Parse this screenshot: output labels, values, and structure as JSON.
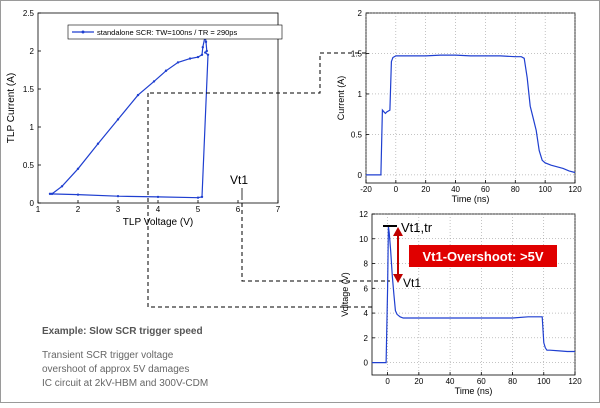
{
  "chart_data": [
    {
      "type": "line",
      "xlabel": "TLP Voltage (V)",
      "ylabel": "TLP Current (A)",
      "xlim": [
        1,
        7
      ],
      "ylim": [
        0,
        2.5
      ],
      "xticks": [
        "1",
        "2",
        "3",
        "4",
        "5",
        "6",
        "7"
      ],
      "yticks": [
        "0",
        "0.5",
        "1",
        "1.5",
        "2",
        "2.5"
      ],
      "grid": false,
      "legend": "top-left",
      "series": [
        {
          "name": "standalone SCR: TW=100ns / TR = 290ps",
          "x": [
            1.35,
            1.6,
            2.0,
            2.5,
            3.0,
            3.5,
            3.9,
            4.2,
            4.5,
            4.8,
            5.0,
            5.1,
            5.12,
            5.18,
            5.2,
            5.22,
            5.18,
            5.25,
            5.1,
            5.0,
            4.0,
            3.0,
            2.0,
            1.3
          ],
          "y": [
            0.12,
            0.22,
            0.45,
            0.78,
            1.1,
            1.42,
            1.6,
            1.74,
            1.85,
            1.9,
            1.92,
            1.95,
            2.05,
            2.2,
            2.12,
            2.0,
            1.98,
            1.95,
            0.08,
            0.07,
            0.08,
            0.09,
            0.11,
            0.12
          ]
        }
      ],
      "annotations": [
        "Vt1"
      ],
      "color": "#1f3fd0"
    },
    {
      "type": "line",
      "xlabel": "Time (ns)",
      "ylabel": "Current (A)",
      "xlim": [
        -20,
        120
      ],
      "ylim": [
        -0.1,
        2.0
      ],
      "xticks": [
        "-20",
        "0",
        "20",
        "40",
        "60",
        "80",
        "100",
        "120"
      ],
      "yticks": [
        "0",
        "0.5",
        "1",
        "1.5",
        "2"
      ],
      "grid": true,
      "series": [
        {
          "x": [
            -20,
            -10,
            -9,
            -8,
            -7,
            -6,
            -4,
            -3,
            -2,
            0,
            10,
            20,
            30,
            40,
            50,
            60,
            70,
            80,
            84,
            86,
            88,
            90,
            92,
            94,
            96,
            98,
            100,
            104,
            108,
            112,
            116,
            120
          ],
          "y": [
            0.0,
            0.0,
            0.8,
            0.78,
            0.76,
            0.78,
            0.8,
            1.4,
            1.45,
            1.47,
            1.47,
            1.47,
            1.48,
            1.48,
            1.47,
            1.47,
            1.47,
            1.46,
            1.46,
            1.44,
            1.2,
            0.85,
            0.7,
            0.55,
            0.3,
            0.18,
            0.15,
            0.12,
            0.1,
            0.08,
            0.05,
            0.03
          ]
        }
      ],
      "color": "#1f3fd0"
    },
    {
      "type": "line",
      "xlabel": "Time (ns)",
      "ylabel": "Voltage (V)",
      "xlim": [
        -10,
        120
      ],
      "ylim": [
        -1,
        12
      ],
      "xticks": [
        "0",
        "20",
        "40",
        "60",
        "80",
        "100",
        "120"
      ],
      "yticks": [
        "0",
        "2",
        "4",
        "6",
        "8",
        "10",
        "12"
      ],
      "grid": true,
      "series": [
        {
          "x": [
            -10,
            -1,
            0,
            0.5,
            1,
            2,
            3,
            4,
            5,
            6,
            8,
            10,
            15,
            20,
            30,
            40,
            50,
            60,
            70,
            80,
            90,
            99,
            100,
            101,
            102,
            104,
            110,
            115,
            120
          ],
          "y": [
            0.0,
            0.0,
            6.0,
            11.0,
            10.5,
            9.0,
            7.0,
            5.5,
            4.2,
            3.9,
            3.7,
            3.6,
            3.6,
            3.6,
            3.6,
            3.6,
            3.6,
            3.6,
            3.6,
            3.6,
            3.7,
            3.7,
            1.6,
            1.2,
            1.0,
            1.0,
            0.95,
            0.9,
            0.9
          ]
        }
      ],
      "annotations": [
        "Vt1,tr",
        "Vt1-Overshoot: >5V",
        "Vt1"
      ],
      "color": "#1f3fd0"
    }
  ],
  "text": {
    "example": "Example: Slow SCR trigger speed",
    "desc1": "Transient SCR trigger voltage",
    "desc2": "overshoot of approx 5V damages",
    "desc3": "IC circuit at  2kV-HBM and 300V-CDM"
  }
}
